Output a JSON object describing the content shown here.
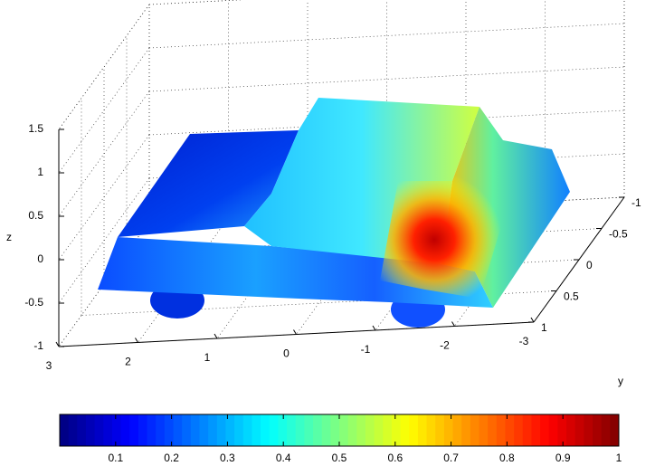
{
  "chart_data": {
    "type": "surface",
    "xticks": [
      -3,
      -2,
      -1,
      0,
      1,
      2,
      3
    ],
    "xlim": [
      -3,
      3
    ],
    "yticks": [
      -1,
      -0.5,
      0,
      0.5,
      1
    ],
    "ylim": [
      -1,
      1
    ],
    "ylabel": "y",
    "zticks": [
      -1,
      -0.5,
      0,
      0.5,
      1,
      1.5
    ],
    "zlim": [
      -1,
      1.5
    ],
    "zlabel": "z",
    "grid": true,
    "colorbar": {
      "colormap": "jet",
      "clim": [
        0,
        1
      ],
      "ticks": [
        0.1,
        0.2,
        0.3,
        0.4,
        0.5,
        0.6,
        0.7,
        0.8,
        0.9,
        1
      ]
    }
  }
}
